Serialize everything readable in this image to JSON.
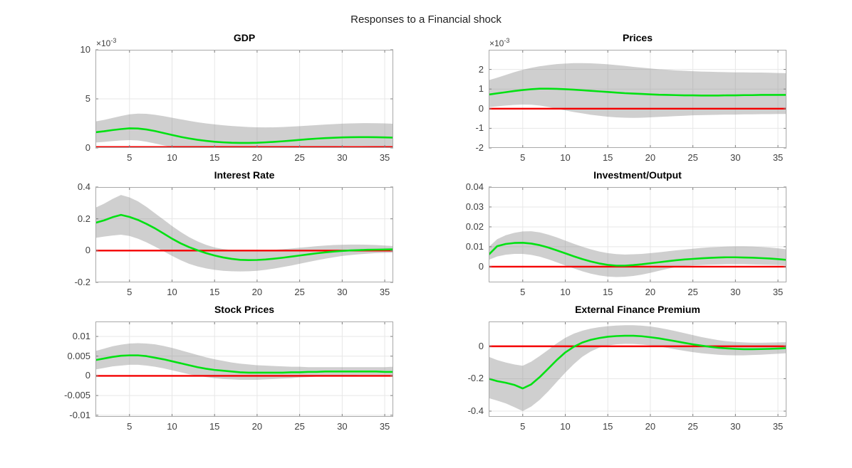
{
  "figure": {
    "title": "Responses to a Financial shock"
  },
  "style": {
    "background": "#ffffff",
    "median_color": "#00e112",
    "zero_line_color": "#f40000",
    "band_fill": "rgba(140,140,140,0.42)",
    "grid_color": "#e7e7e7",
    "axis_color": "#a9a9a9",
    "tick_mark_color": "#7d7d7d",
    "tick_text_color": "#404040"
  },
  "chart_data": [
    {
      "type": "line",
      "title": "GDP",
      "exponent": {
        "base": "×10",
        "power": "-3"
      },
      "unit_scale": "1e-3",
      "xlim": [
        1,
        36
      ],
      "xticks": [
        5,
        10,
        15,
        20,
        25,
        30,
        35
      ],
      "ylim": [
        0,
        10
      ],
      "yticks": [
        0,
        5,
        10
      ],
      "ytick_labels": [
        "0",
        "5",
        "10"
      ],
      "zero_line": {
        "y": 0
      },
      "series": [
        {
          "name": "median-response",
          "values": [
            1.6,
            1.7,
            1.82,
            1.92,
            2.0,
            1.98,
            1.88,
            1.72,
            1.52,
            1.32,
            1.13,
            0.97,
            0.83,
            0.72,
            0.63,
            0.57,
            0.53,
            0.51,
            0.51,
            0.53,
            0.57,
            0.62,
            0.68,
            0.75,
            0.82,
            0.89,
            0.95,
            1.0,
            1.04,
            1.07,
            1.09,
            1.1,
            1.1,
            1.09,
            1.07,
            1.05
          ]
        }
      ],
      "band": {
        "name": "confidence-band",
        "hi": [
          2.7,
          2.85,
          3.05,
          3.25,
          3.42,
          3.5,
          3.48,
          3.38,
          3.24,
          3.08,
          2.92,
          2.76,
          2.62,
          2.5,
          2.4,
          2.31,
          2.24,
          2.18,
          2.13,
          2.1,
          2.09,
          2.1,
          2.13,
          2.17,
          2.22,
          2.27,
          2.33,
          2.38,
          2.43,
          2.47,
          2.5,
          2.52,
          2.53,
          2.52,
          2.5,
          2.46
        ],
        "lo": [
          0.55,
          0.62,
          0.7,
          0.76,
          0.8,
          0.76,
          0.63,
          0.45,
          0.26,
          0.1,
          0.02,
          0,
          0,
          0,
          0,
          0,
          0,
          0,
          0,
          0,
          0,
          0.01,
          0.03,
          0.06,
          0.09,
          0.12,
          0.14,
          0.16,
          0.18,
          0.19,
          0.2,
          0.2,
          0.19,
          0.18,
          0.16,
          0.14
        ]
      }
    },
    {
      "type": "line",
      "title": "Prices",
      "exponent": {
        "base": "×10",
        "power": "-3"
      },
      "unit_scale": "1e-3",
      "xlim": [
        1,
        36
      ],
      "xticks": [
        5,
        10,
        15,
        20,
        25,
        30,
        35
      ],
      "ylim": [
        -2,
        3.0
      ],
      "yticks": [
        -2,
        -1,
        0,
        1,
        2
      ],
      "ytick_labels": [
        "-2",
        "-1",
        "0",
        "1",
        "2"
      ],
      "zero_line": {
        "y": 0
      },
      "series": [
        {
          "name": "median-response",
          "values": [
            0.72,
            0.78,
            0.84,
            0.9,
            0.95,
            0.99,
            1.02,
            1.02,
            1.01,
            0.99,
            0.97,
            0.94,
            0.91,
            0.88,
            0.85,
            0.82,
            0.79,
            0.77,
            0.75,
            0.73,
            0.71,
            0.7,
            0.69,
            0.68,
            0.68,
            0.67,
            0.67,
            0.67,
            0.68,
            0.68,
            0.69,
            0.69,
            0.7,
            0.7,
            0.7,
            0.7
          ]
        }
      ],
      "band": {
        "name": "confidence-band",
        "hi": [
          1.45,
          1.58,
          1.72,
          1.86,
          1.98,
          2.08,
          2.16,
          2.22,
          2.27,
          2.3,
          2.32,
          2.32,
          2.31,
          2.29,
          2.26,
          2.22,
          2.18,
          2.13,
          2.09,
          2.05,
          2.01,
          1.98,
          1.95,
          1.93,
          1.91,
          1.89,
          1.88,
          1.87,
          1.86,
          1.85,
          1.85,
          1.84,
          1.84,
          1.83,
          1.82,
          1.81
        ],
        "lo": [
          0.08,
          0.12,
          0.16,
          0.19,
          0.21,
          0.2,
          0.16,
          0.09,
          0.0,
          -0.09,
          -0.17,
          -0.24,
          -0.31,
          -0.36,
          -0.41,
          -0.44,
          -0.46,
          -0.47,
          -0.46,
          -0.44,
          -0.42,
          -0.4,
          -0.38,
          -0.36,
          -0.34,
          -0.33,
          -0.32,
          -0.31,
          -0.3,
          -0.3,
          -0.29,
          -0.29,
          -0.28,
          -0.28,
          -0.27,
          -0.27
        ]
      }
    },
    {
      "type": "line",
      "title": "Interest Rate",
      "exponent": null,
      "unit_scale": "1",
      "xlim": [
        1,
        36
      ],
      "xticks": [
        5,
        10,
        15,
        20,
        25,
        30,
        35
      ],
      "ylim": [
        -0.2,
        0.4
      ],
      "yticks": [
        -0.2,
        0,
        0.2,
        0.4
      ],
      "ytick_labels": [
        "-0.2",
        "0",
        "0.2",
        "0.4"
      ],
      "zero_line": {
        "y": 0
      },
      "series": [
        {
          "name": "median-response",
          "values": [
            0.175,
            0.19,
            0.21,
            0.225,
            0.212,
            0.193,
            0.168,
            0.14,
            0.108,
            0.075,
            0.046,
            0.022,
            0.002,
            -0.016,
            -0.031,
            -0.043,
            -0.052,
            -0.058,
            -0.06,
            -0.059,
            -0.056,
            -0.051,
            -0.045,
            -0.038,
            -0.031,
            -0.024,
            -0.017,
            -0.011,
            -0.006,
            -0.002,
            0.001,
            0.003,
            0.005,
            0.006,
            0.007,
            0.008
          ]
        }
      ],
      "band": {
        "name": "confidence-band",
        "hi": [
          0.27,
          0.295,
          0.325,
          0.35,
          0.335,
          0.31,
          0.275,
          0.235,
          0.195,
          0.155,
          0.118,
          0.085,
          0.058,
          0.036,
          0.02,
          0.01,
          0.004,
          0.001,
          0.0,
          0.0,
          0.002,
          0.005,
          0.009,
          0.013,
          0.018,
          0.023,
          0.028,
          0.032,
          0.035,
          0.037,
          0.038,
          0.038,
          0.037,
          0.035,
          0.032,
          0.029
        ],
        "lo": [
          0.08,
          0.088,
          0.095,
          0.1,
          0.092,
          0.075,
          0.052,
          0.025,
          -0.004,
          -0.033,
          -0.06,
          -0.083,
          -0.1,
          -0.112,
          -0.121,
          -0.127,
          -0.13,
          -0.131,
          -0.13,
          -0.127,
          -0.121,
          -0.113,
          -0.104,
          -0.094,
          -0.083,
          -0.072,
          -0.061,
          -0.051,
          -0.042,
          -0.034,
          -0.028,
          -0.023,
          -0.019,
          -0.016,
          -0.014,
          -0.013
        ]
      }
    },
    {
      "type": "line",
      "title": "Investment/Output",
      "exponent": null,
      "unit_scale": "1",
      "xlim": [
        1,
        36
      ],
      "xticks": [
        5,
        10,
        15,
        20,
        25,
        30,
        35
      ],
      "ylim": [
        -0.0079,
        0.04
      ],
      "yticks": [
        0,
        0.01,
        0.02,
        0.03,
        0.04
      ],
      "ytick_labels": [
        "0",
        "0.01",
        "0.02",
        "0.03",
        "0.04"
      ],
      "zero_line": {
        "y": 0
      },
      "series": [
        {
          "name": "median-response",
          "values": [
            0.006,
            0.0103,
            0.0114,
            0.0119,
            0.012,
            0.0116,
            0.0108,
            0.0096,
            0.0082,
            0.0067,
            0.0052,
            0.0038,
            0.0026,
            0.0016,
            0.0009,
            0.0005,
            0.0005,
            0.0008,
            0.0012,
            0.0017,
            0.0022,
            0.0027,
            0.0032,
            0.0036,
            0.0039,
            0.0042,
            0.0044,
            0.0046,
            0.0047,
            0.0047,
            0.0046,
            0.0045,
            0.0043,
            0.0041,
            0.0038,
            0.0034
          ]
        }
      ],
      "band": {
        "name": "confidence-band",
        "hi": [
          0.0098,
          0.0138,
          0.0158,
          0.017,
          0.0177,
          0.0178,
          0.0172,
          0.0161,
          0.0147,
          0.0131,
          0.0115,
          0.01,
          0.0087,
          0.0076,
          0.0068,
          0.0063,
          0.0061,
          0.0062,
          0.0064,
          0.0068,
          0.0072,
          0.0077,
          0.0082,
          0.0086,
          0.009,
          0.0094,
          0.0097,
          0.0099,
          0.0101,
          0.0102,
          0.0102,
          0.0101,
          0.0099,
          0.0096,
          0.0092,
          0.0087
        ],
        "lo": [
          0.0034,
          0.0051,
          0.006,
          0.0064,
          0.0064,
          0.0059,
          0.005,
          0.0037,
          0.0022,
          0.0006,
          -0.0009,
          -0.0023,
          -0.0035,
          -0.0044,
          -0.005,
          -0.0052,
          -0.0051,
          -0.0047,
          -0.004,
          -0.0031,
          -0.0021,
          -0.0011,
          -0.0002,
          0.0003,
          0.0006,
          0.0008,
          0.001,
          0.0011,
          0.0012,
          0.0012,
          0.0012,
          0.0011,
          0.001,
          0.0009,
          0.0008,
          0.0007
        ]
      }
    },
    {
      "type": "line",
      "title": "Stock Prices",
      "exponent": null,
      "unit_scale": "1",
      "xlim": [
        1,
        36
      ],
      "xticks": [
        5,
        10,
        15,
        20,
        25,
        30,
        35
      ],
      "ylim": [
        -0.0104,
        0.0138
      ],
      "yticks": [
        -0.01,
        -0.005,
        0,
        0.005,
        0.01
      ],
      "ytick_labels": [
        "-0.01",
        "-0.005",
        "0",
        "0.005",
        "0.01"
      ],
      "zero_line": {
        "y": 0
      },
      "series": [
        {
          "name": "median-response",
          "values": [
            0.004,
            0.0044,
            0.0048,
            0.0051,
            0.0052,
            0.0052,
            0.005,
            0.0046,
            0.0042,
            0.0037,
            0.0032,
            0.0027,
            0.0022,
            0.0018,
            0.0015,
            0.0013,
            0.0011,
            0.0009,
            0.0008,
            0.0008,
            0.0008,
            0.0008,
            0.0008,
            0.0009,
            0.0009,
            0.001,
            0.001,
            0.0011,
            0.0011,
            0.0011,
            0.0011,
            0.0011,
            0.0011,
            0.0011,
            0.001,
            0.001
          ]
        }
      ],
      "band": {
        "name": "confidence-band",
        "hi": [
          0.0063,
          0.0069,
          0.0075,
          0.0079,
          0.0082,
          0.0083,
          0.0082,
          0.008,
          0.0076,
          0.0071,
          0.0065,
          0.0059,
          0.0053,
          0.0047,
          0.0042,
          0.0038,
          0.0034,
          0.0031,
          0.0029,
          0.0027,
          0.0026,
          0.0025,
          0.0024,
          0.0023,
          0.0023,
          0.0022,
          0.0022,
          0.0022,
          0.0022,
          0.0022,
          0.0022,
          0.0022,
          0.0022,
          0.0022,
          0.0022,
          0.0023
        ],
        "lo": [
          0.0016,
          0.002,
          0.0024,
          0.0026,
          0.0028,
          0.0028,
          0.0026,
          0.0023,
          0.0019,
          0.0014,
          0.0009,
          0.0004,
          0.0,
          -0.0003,
          -0.0006,
          -0.0008,
          -0.0009,
          -0.001,
          -0.001,
          -0.001,
          -0.0009,
          -0.0008,
          -0.0007,
          -0.0006,
          -0.0004,
          -0.0003,
          -0.0002,
          -0.0001,
          0.0,
          0.0001,
          0.0001,
          0.0002,
          0.0002,
          0.0002,
          0.0002,
          0.0002
        ]
      }
    },
    {
      "type": "line",
      "title": "External Finance Premium",
      "exponent": null,
      "unit_scale": "1",
      "xlim": [
        1,
        36
      ],
      "xticks": [
        5,
        10,
        15,
        20,
        25,
        30,
        35
      ],
      "ylim": [
        -0.435,
        0.153
      ],
      "yticks": [
        -0.4,
        -0.2,
        0
      ],
      "ytick_labels": [
        "-0.4",
        "-0.2",
        "0"
      ],
      "zero_line": {
        "y": 0
      },
      "series": [
        {
          "name": "median-response",
          "values": [
            -0.2,
            -0.215,
            -0.225,
            -0.238,
            -0.26,
            -0.235,
            -0.19,
            -0.138,
            -0.085,
            -0.038,
            -0.003,
            0.023,
            0.04,
            0.051,
            0.059,
            0.063,
            0.065,
            0.065,
            0.062,
            0.056,
            0.049,
            0.04,
            0.031,
            0.021,
            0.012,
            0.004,
            -0.003,
            -0.009,
            -0.013,
            -0.016,
            -0.018,
            -0.018,
            -0.017,
            -0.016,
            -0.014,
            -0.012
          ]
        }
      ],
      "band": {
        "name": "confidence-band",
        "hi": [
          -0.065,
          -0.085,
          -0.1,
          -0.112,
          -0.12,
          -0.095,
          -0.06,
          -0.022,
          0.018,
          0.052,
          0.078,
          0.096,
          0.109,
          0.118,
          0.124,
          0.128,
          0.13,
          0.13,
          0.127,
          0.122,
          0.114,
          0.104,
          0.093,
          0.081,
          0.069,
          0.057,
          0.047,
          0.038,
          0.031,
          0.027,
          0.024,
          0.022,
          0.022,
          0.023,
          0.024,
          0.025
        ],
        "lo": [
          -0.32,
          -0.335,
          -0.352,
          -0.375,
          -0.4,
          -0.372,
          -0.33,
          -0.278,
          -0.22,
          -0.163,
          -0.11,
          -0.065,
          -0.032,
          -0.008,
          0.005,
          0.012,
          0.015,
          0.014,
          0.011,
          0.006,
          -0.001,
          -0.01,
          -0.019,
          -0.028,
          -0.036,
          -0.043,
          -0.048,
          -0.052,
          -0.055,
          -0.056,
          -0.056,
          -0.054,
          -0.052,
          -0.049,
          -0.046,
          -0.043
        ]
      }
    }
  ]
}
